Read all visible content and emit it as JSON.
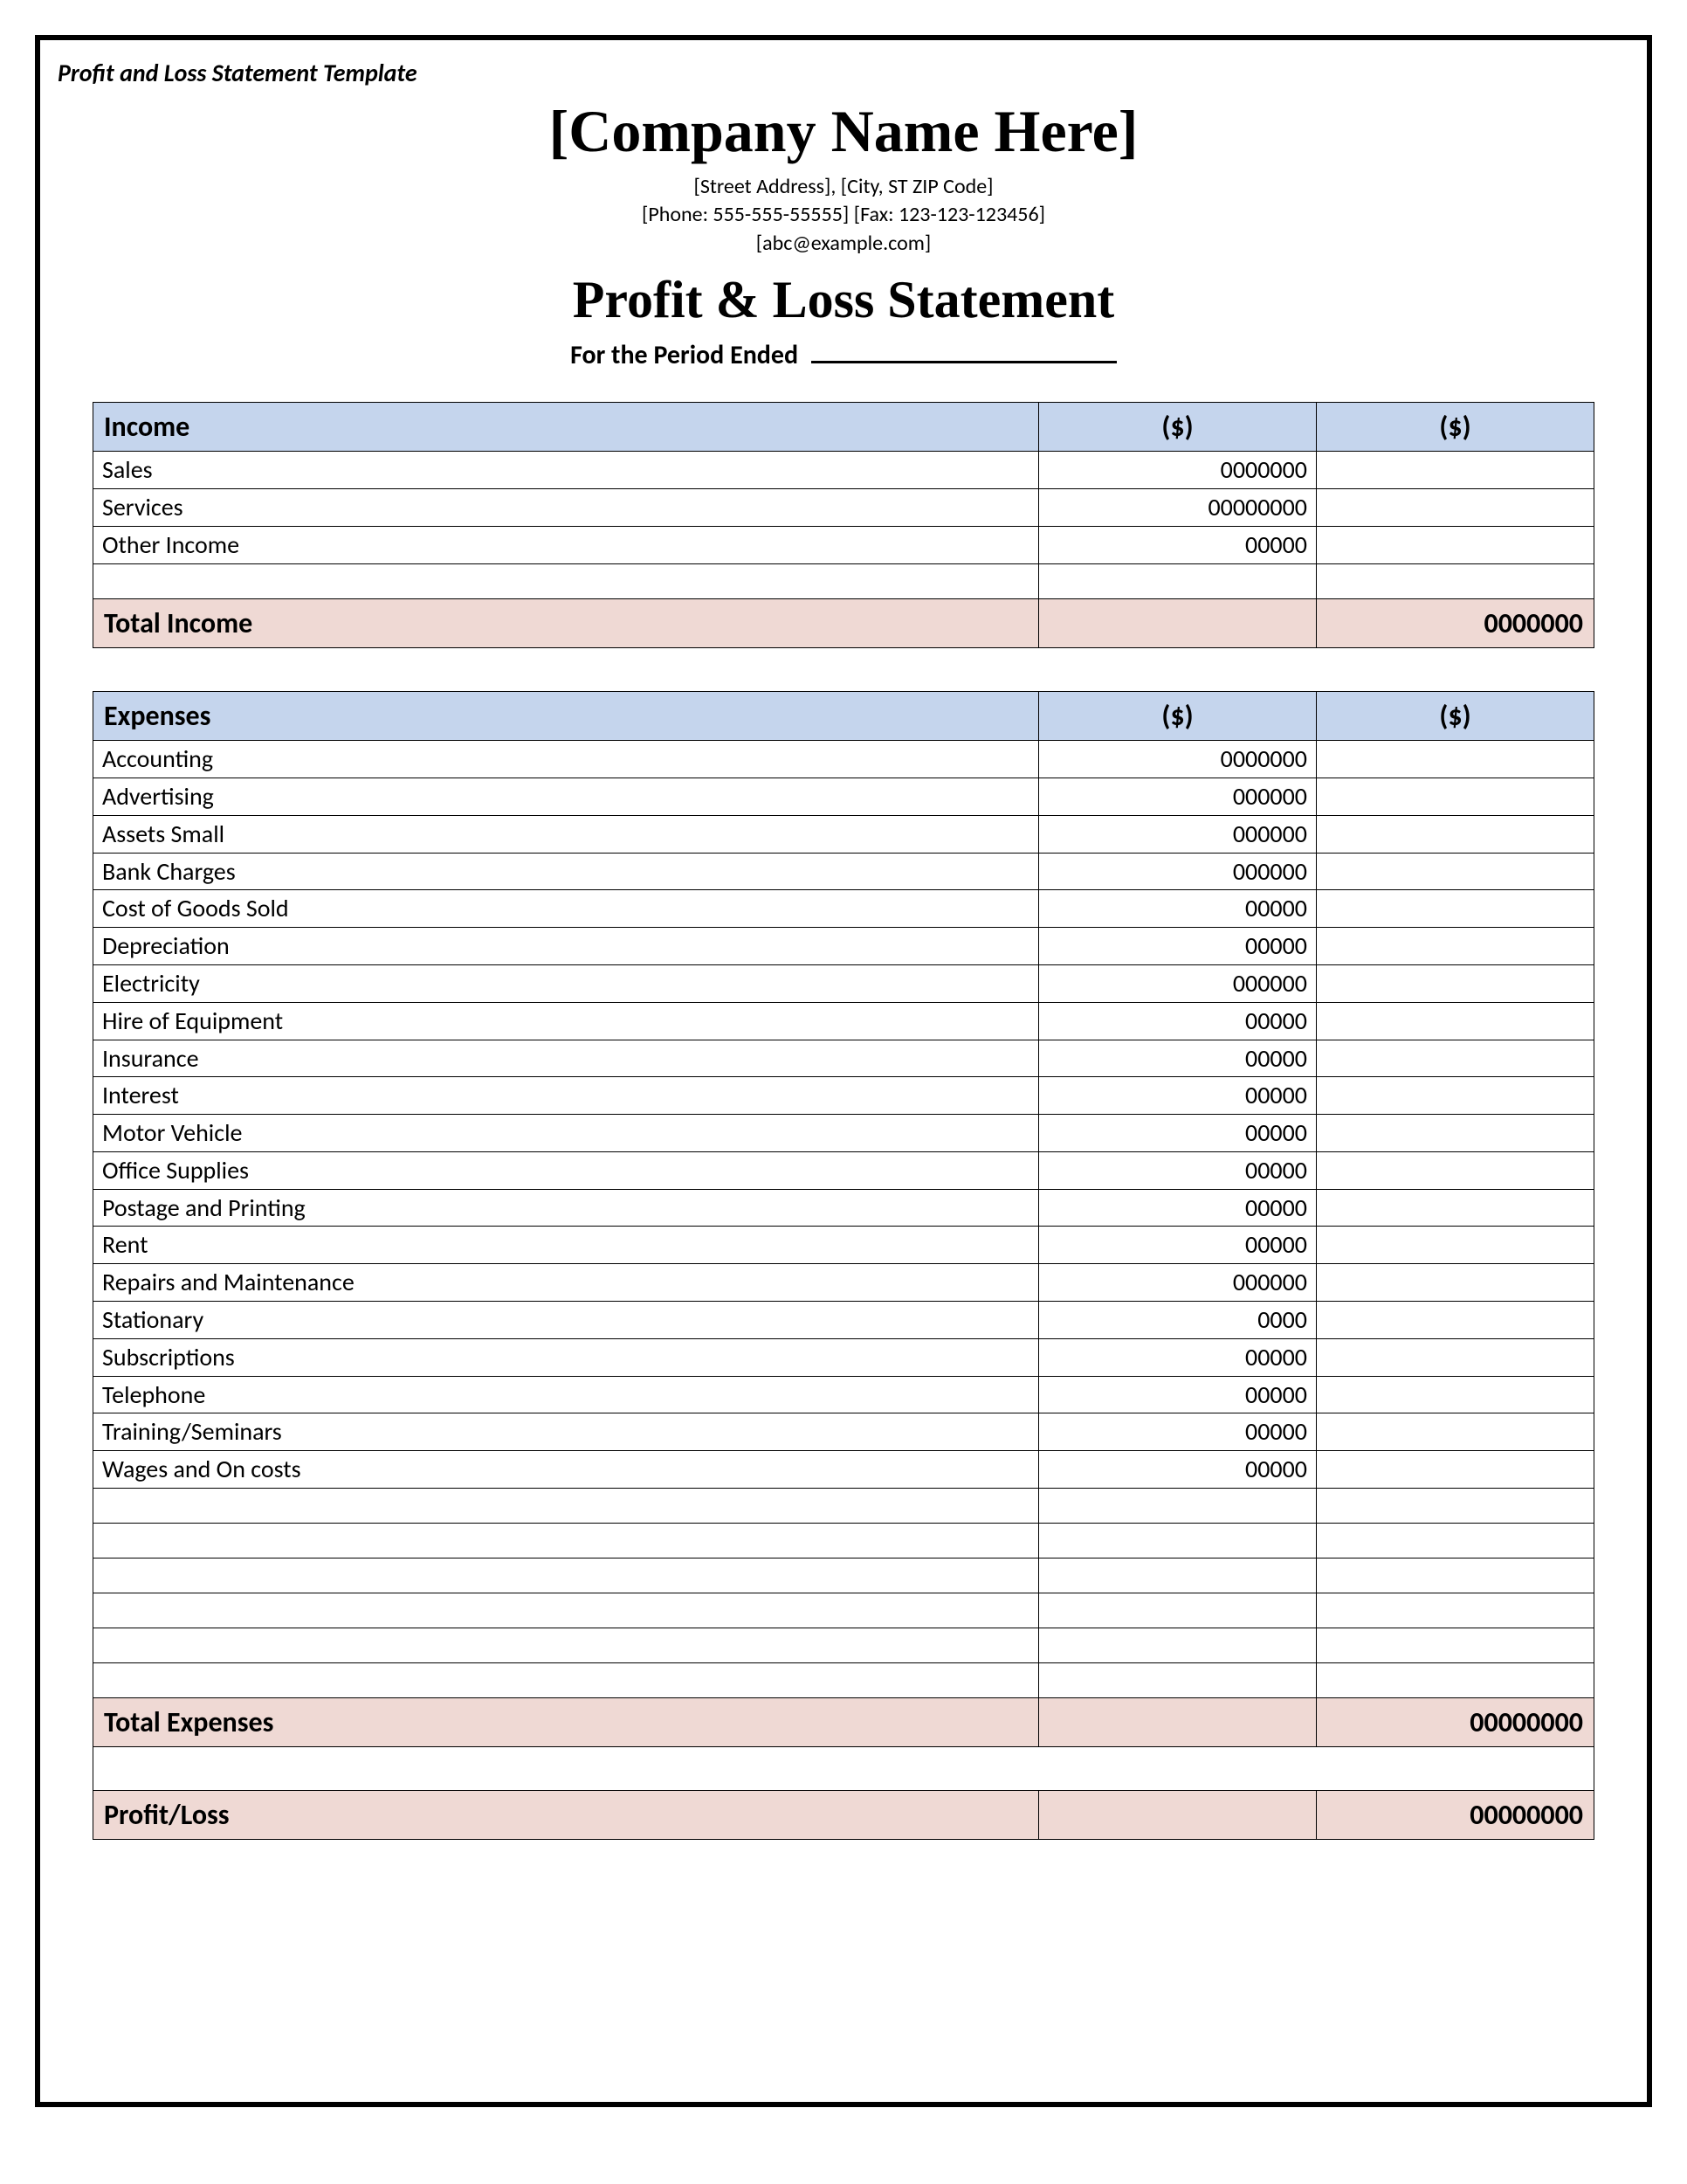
{
  "template_label": "Profit and Loss Statement Template",
  "header": {
    "company_name": "[Company Name Here]",
    "address": "[Street Address], [City, ST ZIP Code]",
    "phone_fax": "[Phone: 555-555-55555] [Fax: 123-123-123456]",
    "email": "[abc@example.com]",
    "statement_title": "Profit & Loss Statement",
    "period_label": "For the Period Ended"
  },
  "colors": {
    "section_header_bg": "#c5d5ed",
    "total_row_bg": "#efd9d4",
    "border": "#000000",
    "page_bg": "#ffffff"
  },
  "columns": {
    "col_a_header": "($)",
    "col_b_header": "($)"
  },
  "income": {
    "title": "Income",
    "rows": [
      {
        "label": "Sales",
        "a": "0000000",
        "b": ""
      },
      {
        "label": "Services",
        "a": "00000000",
        "b": ""
      },
      {
        "label": "Other Income",
        "a": "00000",
        "b": ""
      },
      {
        "label": "",
        "a": "",
        "b": ""
      }
    ],
    "total_label": "Total Income",
    "total_a": "",
    "total_b": "0000000"
  },
  "expenses": {
    "title": "Expenses",
    "rows": [
      {
        "label": "Accounting",
        "a": "0000000",
        "b": ""
      },
      {
        "label": "Advertising",
        "a": "000000",
        "b": ""
      },
      {
        "label": "Assets Small",
        "a": "000000",
        "b": ""
      },
      {
        "label": "Bank Charges",
        "a": "000000",
        "b": ""
      },
      {
        "label": "Cost of Goods Sold",
        "a": "00000",
        "b": ""
      },
      {
        "label": "Depreciation",
        "a": "00000",
        "b": ""
      },
      {
        "label": "Electricity",
        "a": "000000",
        "b": ""
      },
      {
        "label": "Hire of Equipment",
        "a": "00000",
        "b": ""
      },
      {
        "label": "Insurance",
        "a": "00000",
        "b": ""
      },
      {
        "label": "Interest",
        "a": "00000",
        "b": ""
      },
      {
        "label": "Motor Vehicle",
        "a": "00000",
        "b": ""
      },
      {
        "label": "Office Supplies",
        "a": "00000",
        "b": ""
      },
      {
        "label": "Postage and Printing",
        "a": "00000",
        "b": ""
      },
      {
        "label": "Rent",
        "a": "00000",
        "b": ""
      },
      {
        "label": "Repairs and Maintenance",
        "a": "000000",
        "b": ""
      },
      {
        "label": "Stationary",
        "a": "0000",
        "b": ""
      },
      {
        "label": "Subscriptions",
        "a": "00000",
        "b": ""
      },
      {
        "label": "Telephone",
        "a": "00000",
        "b": ""
      },
      {
        "label": "Training/Seminars",
        "a": "00000",
        "b": ""
      },
      {
        "label": "Wages and On costs",
        "a": "00000",
        "b": ""
      },
      {
        "label": "",
        "a": "",
        "b": ""
      },
      {
        "label": "",
        "a": "",
        "b": ""
      },
      {
        "label": "",
        "a": "",
        "b": ""
      },
      {
        "label": "",
        "a": "",
        "b": ""
      },
      {
        "label": "",
        "a": "",
        "b": ""
      },
      {
        "label": "",
        "a": "",
        "b": ""
      }
    ],
    "total_label": "Total Expenses",
    "total_a": "",
    "total_b": "00000000"
  },
  "profit_loss": {
    "label": "Profit/Loss",
    "a": "",
    "b": "00000000"
  }
}
